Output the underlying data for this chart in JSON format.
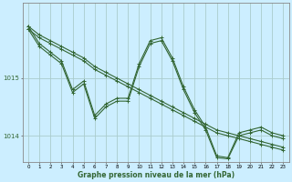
{
  "title": "Graphe pression niveau de la mer (hPa)",
  "background_color": "#cceeff",
  "grid_color": "#aacccc",
  "line_color": "#336633",
  "xlim": [
    -0.5,
    23.5
  ],
  "ylim": [
    1013.55,
    1016.3
  ],
  "yticks": [
    1014,
    1015
  ],
  "ytick_labels": [
    "1014",
    "1015"
  ],
  "xticks": [
    0,
    1,
    2,
    3,
    4,
    5,
    6,
    7,
    8,
    9,
    10,
    11,
    12,
    13,
    14,
    15,
    16,
    17,
    18,
    19,
    20,
    21,
    22,
    23
  ],
  "series": [
    {
      "x": [
        0,
        1,
        2,
        3,
        4,
        5,
        6,
        7,
        8,
        9,
        10,
        11,
        12,
        13,
        14,
        15,
        16,
        17,
        18,
        19,
        20,
        21,
        22,
        23
      ],
      "y": [
        1015.9,
        1015.75,
        1015.65,
        1015.55,
        1015.45,
        1015.35,
        1015.2,
        1015.1,
        1015.0,
        1014.9,
        1014.8,
        1014.7,
        1014.6,
        1014.5,
        1014.4,
        1014.3,
        1014.2,
        1014.1,
        1014.05,
        1014.0,
        1013.95,
        1013.9,
        1013.85,
        1013.8
      ]
    },
    {
      "x": [
        0,
        1,
        2,
        3,
        4,
        5,
        6,
        7,
        8,
        9,
        10,
        11,
        12,
        13,
        14,
        15,
        16,
        17,
        18,
        19,
        20,
        21,
        22,
        23
      ],
      "y": [
        1015.85,
        1015.7,
        1015.6,
        1015.5,
        1015.4,
        1015.3,
        1015.15,
        1015.05,
        1014.95,
        1014.85,
        1014.75,
        1014.65,
        1014.55,
        1014.45,
        1014.35,
        1014.25,
        1014.15,
        1014.05,
        1014.0,
        1013.95,
        1013.9,
        1013.85,
        1013.8,
        1013.75
      ]
    },
    {
      "x": [
        0,
        1,
        2,
        3,
        4,
        5,
        6,
        7,
        8,
        9,
        10,
        11,
        12,
        13,
        14,
        15,
        16,
        17,
        18,
        19,
        20,
        21,
        22,
        23
      ],
      "y": [
        1015.9,
        1015.6,
        1015.45,
        1015.3,
        1014.8,
        1014.95,
        1014.35,
        1014.55,
        1014.65,
        1014.65,
        1015.25,
        1015.65,
        1015.7,
        1015.35,
        1014.85,
        1014.45,
        1014.15,
        1013.65,
        1013.62,
        1014.05,
        1014.1,
        1014.15,
        1014.05,
        1014.0
      ]
    },
    {
      "x": [
        0,
        1,
        2,
        3,
        4,
        5,
        6,
        7,
        8,
        9,
        10,
        11,
        12,
        13,
        14,
        15,
        16,
        17,
        18,
        19,
        20,
        21,
        22,
        23
      ],
      "y": [
        1015.85,
        1015.55,
        1015.4,
        1015.25,
        1014.75,
        1014.9,
        1014.3,
        1014.5,
        1014.6,
        1014.6,
        1015.2,
        1015.6,
        1015.65,
        1015.3,
        1014.8,
        1014.4,
        1014.1,
        1013.62,
        1013.6,
        1014.0,
        1014.05,
        1014.1,
        1014.0,
        1013.95
      ]
    }
  ]
}
